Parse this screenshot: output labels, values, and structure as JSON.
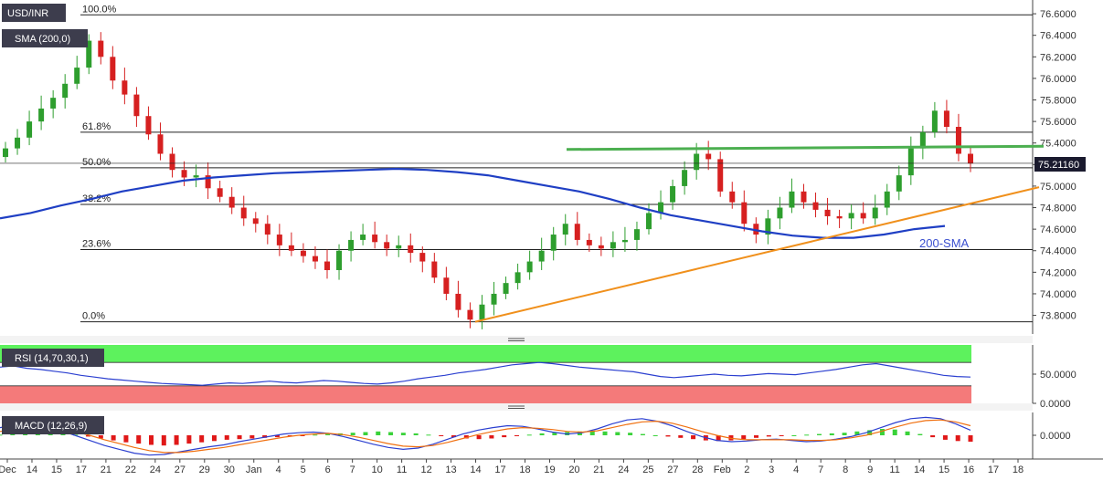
{
  "colors": {
    "up": "#2e9e2e",
    "down": "#d62020",
    "sma": "#1f3fc4",
    "trend_green": "#4caf50",
    "trend_orange": "#f0901c",
    "rsi_over": "#5df25d",
    "rsi_under": "#f47a7a",
    "rsi_line": "#2b3fd0",
    "macd_line": "#2b3fd0",
    "signal_line": "#f07010",
    "label_bg": "#3d3d4d",
    "price_tag_bg": "#1a1a2e"
  },
  "chart_data": [
    {
      "type": "candlestick",
      "symbol": "USD/INR",
      "indicator_label": "SMA (200,0)",
      "sma_annotation": "200-SMA",
      "y_ticks": [
        "76.6000",
        "76.4000",
        "76.2000",
        "76.0000",
        "75.8000",
        "75.6000",
        "75.4000",
        "75.2000",
        "75.0000",
        "74.8000",
        "74.6000",
        "74.4000",
        "74.2000",
        "74.0000",
        "73.8000"
      ],
      "ylim": [
        73.72,
        76.66
      ],
      "last_price": "75.21160",
      "fibonacci": [
        {
          "label": "100.0%",
          "value": 76.59
        },
        {
          "label": "61.8%",
          "value": 75.5
        },
        {
          "label": "50.0%",
          "value": 75.17
        },
        {
          "label": "38.2%",
          "value": 74.83
        },
        {
          "label": "23.6%",
          "value": 74.41
        },
        {
          "label": "0.0%",
          "value": 73.74
        }
      ],
      "x_ticks": [
        "Dec",
        "14",
        "15",
        "17",
        "21",
        "22",
        "24",
        "27",
        "29",
        "30",
        "Jan",
        "4",
        "5",
        "6",
        "7",
        "10",
        "11",
        "12",
        "13",
        "14",
        "17",
        "18",
        "19",
        "20",
        "21",
        "24",
        "25",
        "27",
        "28",
        "Feb",
        "2",
        "3",
        "4",
        "7",
        "8",
        "9",
        "11",
        "14",
        "15",
        "16",
        "17",
        "18"
      ],
      "candles_close": [
        75.35,
        75.45,
        75.6,
        75.72,
        75.82,
        75.95,
        76.1,
        76.35,
        76.2,
        75.98,
        75.85,
        75.65,
        75.48,
        75.3,
        75.15,
        75.08,
        75.1,
        74.98,
        74.9,
        74.8,
        74.7,
        74.65,
        74.55,
        74.45,
        74.4,
        74.35,
        74.3,
        74.22,
        74.4,
        74.5,
        74.55,
        74.48,
        74.42,
        74.45,
        74.38,
        74.3,
        74.15,
        74.0,
        73.85,
        73.76,
        73.9,
        74.0,
        74.1,
        74.2,
        74.3,
        74.4,
        74.55,
        74.65,
        74.5,
        74.45,
        74.42,
        74.48,
        74.5,
        74.6,
        74.75,
        74.85,
        75.0,
        75.15,
        75.3,
        75.25,
        74.95,
        74.85,
        74.65,
        74.55,
        74.7,
        74.8,
        74.95,
        74.85,
        74.78,
        74.72,
        74.7,
        74.75,
        74.7,
        74.8,
        74.95,
        75.1,
        75.35,
        75.5,
        75.7,
        75.55,
        75.3,
        75.21
      ],
      "sma_200": [
        74.7,
        74.75,
        74.82,
        74.88,
        74.95,
        75.0,
        75.05,
        75.08,
        75.1,
        75.12,
        75.13,
        75.14,
        75.15,
        75.16,
        75.15,
        75.13,
        75.1,
        75.05,
        75.0,
        74.95,
        74.88,
        74.8,
        74.73,
        74.68,
        74.63,
        74.58,
        74.54,
        74.52,
        74.52,
        74.55,
        74.6,
        74.63
      ],
      "trendlines": [
        {
          "color": "trend_green",
          "from": [
            620,
            75.34
          ],
          "to": [
            1142,
            75.37
          ]
        },
        {
          "color": "trend_orange",
          "from": [
            520,
            73.74
          ],
          "to": [
            1137,
            74.99
          ]
        }
      ]
    },
    {
      "type": "line",
      "indicator_label": "RSI (14,70,30,1)",
      "y_ticks": [
        "50.0000",
        "0.0000"
      ],
      "levels": {
        "overbought": 70,
        "oversold": 30
      },
      "ylim": [
        0,
        100
      ],
      "values": [
        62,
        64,
        60,
        58,
        55,
        52,
        48,
        45,
        42,
        40,
        38,
        36,
        34,
        33,
        32,
        31,
        33,
        35,
        34,
        36,
        38,
        36,
        35,
        37,
        39,
        38,
        36,
        34,
        33,
        35,
        38,
        42,
        45,
        48,
        52,
        55,
        58,
        62,
        66,
        68,
        70,
        68,
        65,
        62,
        60,
        58,
        56,
        54,
        50,
        46,
        44,
        46,
        48,
        50,
        48,
        47,
        49,
        51,
        50,
        49,
        52,
        55,
        58,
        62,
        66,
        68,
        64,
        60,
        56,
        52,
        48,
        46,
        45
      ]
    },
    {
      "type": "bar",
      "indicator_label": "MACD (12,26,9)",
      "y_ticks": [
        "0.0000"
      ],
      "histogram": [
        0.01,
        0.03,
        0.05,
        0.07,
        0.06,
        0.04,
        0.01,
        -0.02,
        -0.05,
        -0.08,
        -0.11,
        -0.13,
        -0.15,
        -0.16,
        -0.15,
        -0.13,
        -0.11,
        -0.09,
        -0.07,
        -0.06,
        -0.05,
        -0.04,
        -0.03,
        -0.02,
        -0.01,
        0.01,
        0.02,
        0.03,
        0.04,
        0.05,
        0.06,
        0.05,
        0.04,
        0.03,
        0.01,
        -0.01,
        -0.03,
        -0.05,
        -0.06,
        -0.05,
        -0.03,
        -0.01,
        0.01,
        0.03,
        0.04,
        0.05,
        0.06,
        0.07,
        0.06,
        0.05,
        0.04,
        0.02,
        0.0,
        -0.02,
        -0.04,
        -0.06,
        -0.08,
        -0.09,
        -0.08,
        -0.06,
        -0.04,
        -0.02,
        -0.01,
        0.0,
        0.01,
        0.02,
        0.03,
        0.04,
        0.06,
        0.08,
        0.1,
        0.09,
        0.06,
        0.02,
        -0.03,
        -0.07,
        -0.09,
        -0.1
      ],
      "macd": [
        0.12,
        0.16,
        0.18,
        0.15,
        0.08,
        0.0,
        -0.08,
        -0.16,
        -0.22,
        -0.28,
        -0.31,
        -0.3,
        -0.26,
        -0.22,
        -0.18,
        -0.15,
        -0.1,
        -0.06,
        -0.02,
        0.02,
        0.04,
        0.05,
        0.03,
        -0.02,
        -0.08,
        -0.14,
        -0.19,
        -0.22,
        -0.2,
        -0.14,
        -0.06,
        0.02,
        0.08,
        0.12,
        0.15,
        0.14,
        0.1,
        0.05,
        0.02,
        0.04,
        0.1,
        0.18,
        0.24,
        0.26,
        0.22,
        0.15,
        0.06,
        -0.02,
        -0.08,
        -0.1,
        -0.09,
        -0.07,
        -0.06,
        -0.08,
        -0.1,
        -0.09,
        -0.06,
        -0.02,
        0.04,
        0.12,
        0.2,
        0.26,
        0.28,
        0.26,
        0.18,
        0.08
      ],
      "signal": [
        0.06,
        0.09,
        0.12,
        0.13,
        0.11,
        0.06,
        0.0,
        -0.07,
        -0.13,
        -0.19,
        -0.24,
        -0.27,
        -0.27,
        -0.25,
        -0.22,
        -0.19,
        -0.15,
        -0.11,
        -0.07,
        -0.03,
        0.0,
        0.02,
        0.03,
        0.01,
        -0.03,
        -0.08,
        -0.13,
        -0.17,
        -0.18,
        -0.16,
        -0.11,
        -0.05,
        0.01,
        0.06,
        0.1,
        0.12,
        0.11,
        0.09,
        0.06,
        0.05,
        0.07,
        0.12,
        0.17,
        0.21,
        0.22,
        0.19,
        0.13,
        0.06,
        0.0,
        -0.05,
        -0.07,
        -0.07,
        -0.07,
        -0.07,
        -0.08,
        -0.08,
        -0.07,
        -0.04,
        0.0,
        0.06,
        0.13,
        0.19,
        0.23,
        0.24,
        0.21,
        0.15
      ]
    }
  ]
}
